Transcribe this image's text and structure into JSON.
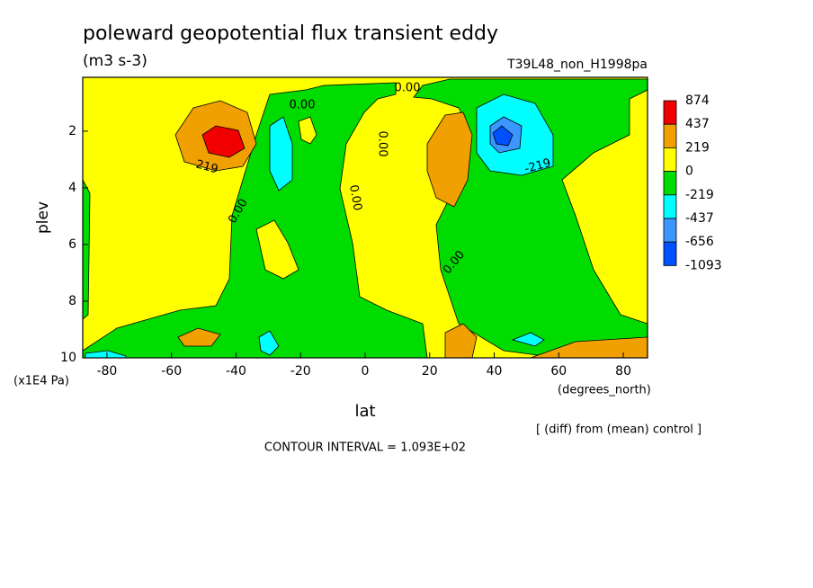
{
  "chart_data": {
    "type": "contour",
    "title": "poleward geopotential flux transient eddy",
    "subtitle": "(m3 s-3)",
    "run_label": "T39L48_non_H1998pa",
    "xlabel": "lat",
    "xunits": "(degrees_north)",
    "ylabel": "plev",
    "yunits": "(x1E4 Pa)",
    "xlim": [
      -87.5,
      87.5
    ],
    "ylim": [
      10,
      0.1
    ],
    "xticks": [
      -80,
      -60,
      -40,
      -20,
      0,
      20,
      40,
      60,
      80
    ],
    "yticks": [
      2,
      4,
      6,
      8,
      10
    ],
    "levels": [
      874,
      437,
      219,
      0,
      -219,
      -437,
      -656,
      -1093
    ],
    "colors": [
      "#f00000",
      "#f0a000",
      "#ffff00",
      "#00dc00",
      "#00ffff",
      "#3c96ff",
      "#0050ff"
    ],
    "contour_labels": [
      "0.00",
      "0.00",
      "0.00",
      "0.00",
      "0.00",
      "0.00",
      "219",
      "-219"
    ],
    "notes": [
      "[ (diff) from (mean) control ]",
      "CONTOUR INTERVAL = 1.093E+02"
    ]
  }
}
